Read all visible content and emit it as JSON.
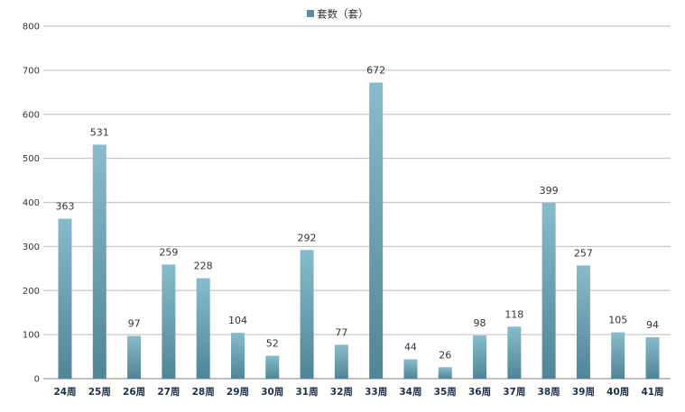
{
  "chart_data": {
    "type": "bar",
    "categories": [
      "24周",
      "25周",
      "26周",
      "27周",
      "28周",
      "29周",
      "30周",
      "31周",
      "32周",
      "33周",
      "34周",
      "35周",
      "36周",
      "37周",
      "38周",
      "39周",
      "40周",
      "41周"
    ],
    "series": [
      {
        "name": "套数（套）",
        "values": [
          363,
          531,
          97,
          259,
          228,
          104,
          52,
          292,
          77,
          672,
          44,
          26,
          98,
          118,
          399,
          257,
          105,
          94
        ]
      }
    ],
    "title": "",
    "xlabel": "",
    "ylabel": "",
    "ylim": [
      0,
      800
    ],
    "yticks": [
      0,
      100,
      200,
      300,
      400,
      500,
      600,
      700,
      800
    ],
    "grid": true,
    "legend": "top-center",
    "colors": {
      "bar_light": "#86bccb",
      "bar_dark": "#4f8598",
      "grid": "#c8c8c8",
      "legend_swatch": "#5a8ea1"
    }
  }
}
